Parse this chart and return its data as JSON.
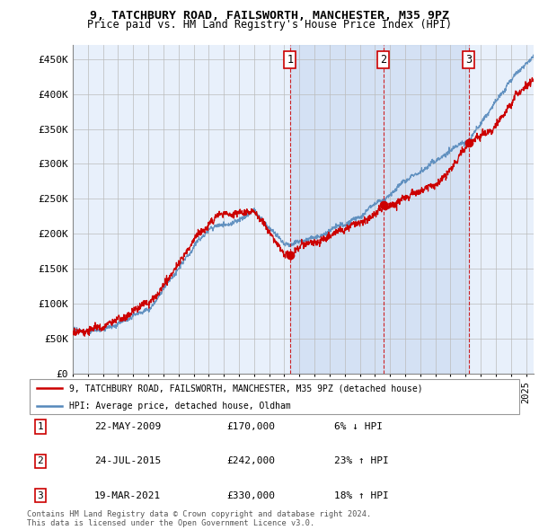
{
  "title1": "9, TATCHBURY ROAD, FAILSWORTH, MANCHESTER, M35 9PZ",
  "title2": "Price paid vs. HM Land Registry's House Price Index (HPI)",
  "legend_red": "9, TATCHBURY ROAD, FAILSWORTH, MANCHESTER, M35 9PZ (detached house)",
  "legend_blue": "HPI: Average price, detached house, Oldham",
  "purchases": [
    {
      "num": 1,
      "date": "22-MAY-2009",
      "date_x": 2009.38,
      "price": 170000,
      "pct": "6%",
      "dir": "↓"
    },
    {
      "num": 2,
      "date": "24-JUL-2015",
      "date_x": 2015.56,
      "price": 242000,
      "pct": "23%",
      "dir": "↑"
    },
    {
      "num": 3,
      "date": "19-MAR-2021",
      "date_x": 2021.21,
      "price": 330000,
      "pct": "18%",
      "dir": "↑"
    }
  ],
  "table_rows": [
    [
      "1",
      "22-MAY-2009",
      "£170,000",
      "6% ↓ HPI"
    ],
    [
      "2",
      "24-JUL-2015",
      "£242,000",
      "23% ↑ HPI"
    ],
    [
      "3",
      "19-MAR-2021",
      "£330,000",
      "18% ↑ HPI"
    ]
  ],
  "footer": "Contains HM Land Registry data © Crown copyright and database right 2024.\nThis data is licensed under the Open Government Licence v3.0.",
  "ylim": [
    0,
    470000
  ],
  "yticks": [
    0,
    50000,
    100000,
    150000,
    200000,
    250000,
    300000,
    350000,
    400000,
    450000
  ],
  "ytick_labels": [
    "£0",
    "£50K",
    "£100K",
    "£150K",
    "£200K",
    "£250K",
    "£300K",
    "£350K",
    "£400K",
    "£450K"
  ],
  "xlim_start": 1995.0,
  "xlim_end": 2025.5,
  "background_color": "#ffffff",
  "chart_bg": "#e8f0fb",
  "grid_color": "#bbbbbb",
  "red_color": "#cc0000",
  "blue_color": "#5588bb",
  "purchase_span_color": "#c8d8f0"
}
